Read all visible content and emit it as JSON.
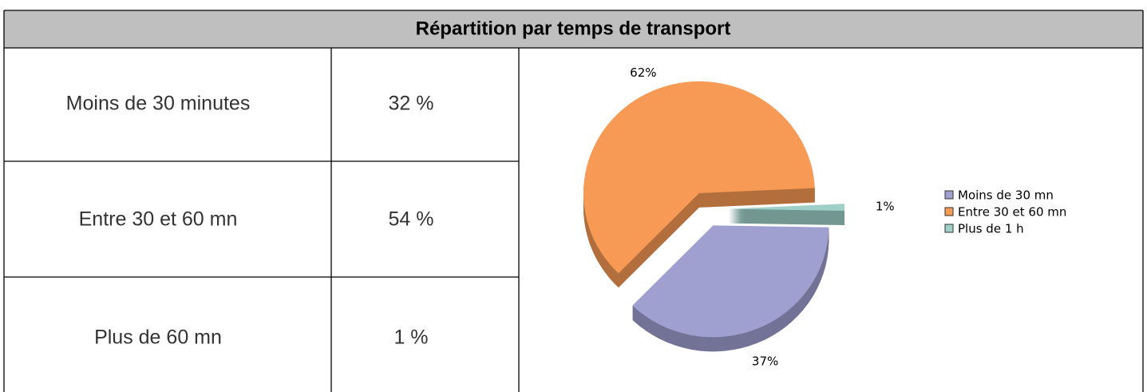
{
  "title": "Répartition par temps de transport",
  "table": {
    "rows": [
      [
        "Moins de 30 minutes",
        "32 %"
      ],
      [
        "Entre 30 et 60 mn",
        "54 %"
      ],
      [
        "Plus de 60 mn",
        "1 %"
      ]
    ]
  },
  "chart_data": {
    "type": "pie",
    "categories": [
      "Moins de 30 mn",
      "Entre 30 et 60 mn",
      "Plus de 1 h"
    ],
    "values": [
      37,
      62,
      1
    ],
    "value_labels": [
      "37%",
      "62%",
      "1%"
    ],
    "colors": [
      "#9fa0d0",
      "#f79a55",
      "#9fd0c8"
    ],
    "legend": "right"
  }
}
